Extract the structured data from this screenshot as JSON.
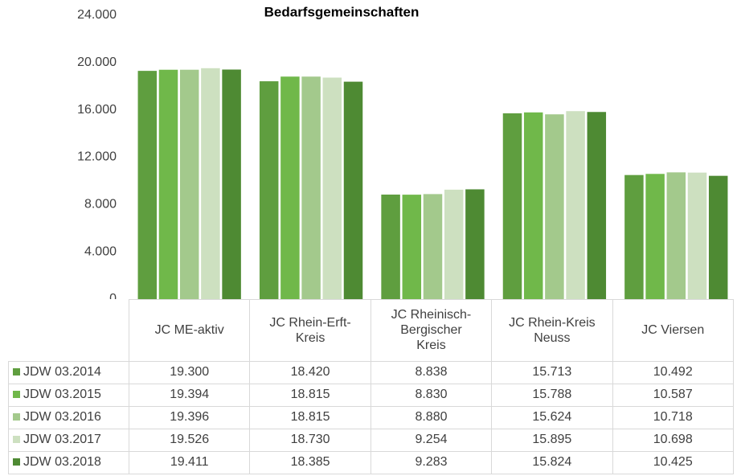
{
  "chart_data": {
    "type": "bar",
    "title": "Bedarfsgemeinschaften",
    "categories": [
      "JC ME-aktiv",
      "JC Rhein-Erft-Kreis",
      "JC Rheinisch-Bergischer Kreis",
      "JC Rhein-Kreis Neuss",
      "JC Viersen"
    ],
    "series": [
      {
        "name": "JDW 03.2014",
        "color": "#5f9e3f",
        "values": [
          19300,
          18420,
          8838,
          15713,
          10492
        ],
        "value_labels": [
          "19.300",
          "18.420",
          "8.838",
          "15.713",
          "10.492"
        ]
      },
      {
        "name": "JDW 03.2015",
        "color": "#70b84a",
        "values": [
          19394,
          18815,
          8830,
          15788,
          10587
        ],
        "value_labels": [
          "19.394",
          "18.815",
          "8.830",
          "15.788",
          "10.587"
        ]
      },
      {
        "name": "JDW 03.2016",
        "color": "#a3c98c",
        "values": [
          19396,
          18815,
          8880,
          15624,
          10718
        ],
        "value_labels": [
          "19.396",
          "18.815",
          "8.880",
          "15.624",
          "10.718"
        ]
      },
      {
        "name": "JDW 03.2017",
        "color": "#cde0c0",
        "values": [
          19526,
          18730,
          9254,
          15895,
          10698
        ],
        "value_labels": [
          "19.526",
          "18.730",
          "9.254",
          "15.895",
          "10.698"
        ]
      },
      {
        "name": "JDW 03.2018",
        "color": "#4e8a33",
        "values": [
          19411,
          18385,
          9283,
          15824,
          10425
        ],
        "value_labels": [
          "19.411",
          "18.385",
          "9.283",
          "15.824",
          "10.425"
        ]
      }
    ],
    "ylim": [
      0,
      24000
    ],
    "yticks": [
      0,
      {
        "value": 4000,
        "label": "4.000"
      },
      {
        "value": 8000,
        "label": "8.000"
      },
      {
        "value": 12000,
        "label": "12.000"
      },
      {
        "value": 16000,
        "label": "16.000"
      },
      {
        "value": 20000,
        "label": "20.000"
      },
      {
        "value": 24000,
        "label": "24.000"
      }
    ]
  }
}
